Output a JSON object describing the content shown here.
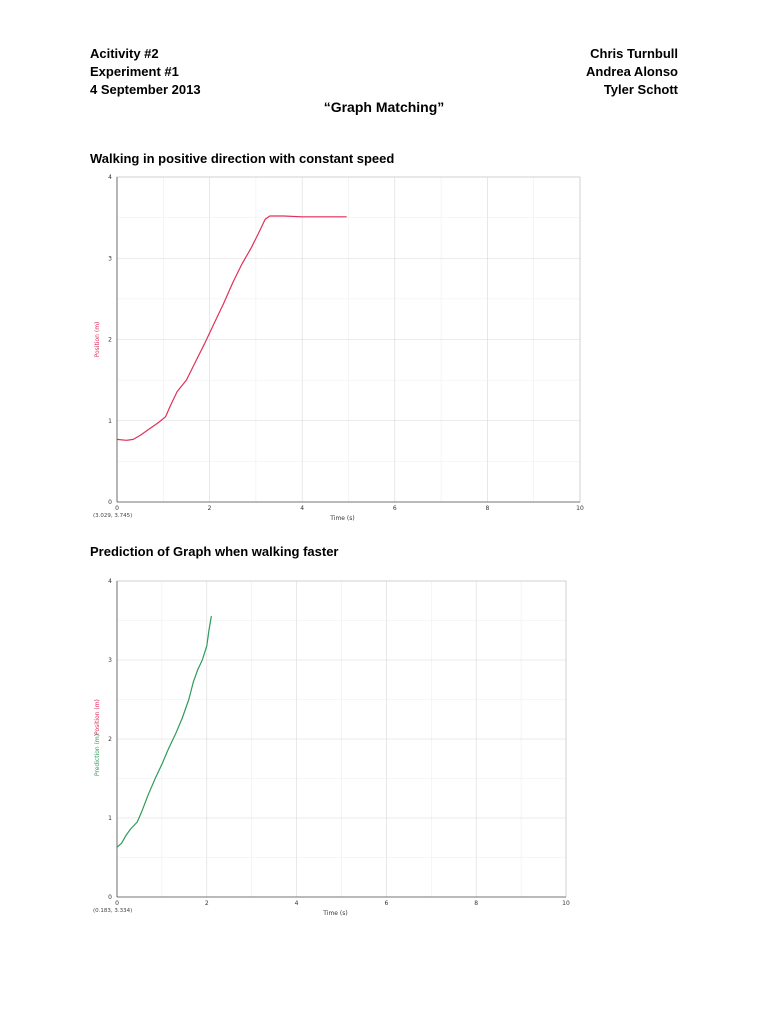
{
  "header": {
    "left": [
      "Acitivity #2",
      "Experiment #1",
      "4 September 2013"
    ],
    "right": [
      "Chris Turnbull",
      "Andrea Alonso",
      "Tyler Schott"
    ],
    "title": "“Graph Matching”"
  },
  "sections": [
    {
      "title": "Walking in positive direction with constant speed"
    },
    {
      "title": "Prediction of Graph when walking faster"
    }
  ],
  "colors": {
    "position": "#e0305a",
    "prediction": "#2e9a5a",
    "grid": "#dddddd"
  },
  "chart_data": [
    {
      "type": "line",
      "title": "",
      "xlabel": "Time (s)",
      "ylabel": "Position (m)",
      "xlim": [
        0,
        10
      ],
      "ylim": [
        0,
        4
      ],
      "xticks": [
        0,
        2,
        4,
        6,
        8,
        10
      ],
      "yticks": [
        0,
        1,
        2,
        3,
        4
      ],
      "grid": true,
      "coord_readout": "(3.029, 3.745)",
      "series": [
        {
          "color": "#e0305a",
          "x": [
            0.0,
            0.2,
            0.35,
            0.5,
            0.7,
            0.9,
            1.05,
            1.15,
            1.3,
            1.5,
            1.7,
            1.9,
            2.1,
            2.3,
            2.5,
            2.7,
            2.9,
            3.05,
            3.2,
            3.3,
            3.6,
            4.0,
            4.5,
            4.95
          ],
          "y": [
            0.77,
            0.76,
            0.77,
            0.82,
            0.9,
            0.98,
            1.05,
            1.18,
            1.36,
            1.5,
            1.73,
            1.96,
            2.2,
            2.44,
            2.7,
            2.93,
            3.13,
            3.3,
            3.48,
            3.52,
            3.52,
            3.51,
            3.51,
            3.51
          ]
        }
      ]
    },
    {
      "type": "line",
      "title": "",
      "xlabel": "Time (s)",
      "ylabel": "Position (m)",
      "ylabel2": "Prediction (m)",
      "xlim": [
        0,
        10
      ],
      "ylim": [
        0,
        4
      ],
      "xticks": [
        0,
        2,
        4,
        6,
        8,
        10
      ],
      "yticks": [
        0,
        1,
        2,
        3,
        4
      ],
      "grid": true,
      "coord_readout": "(0.183, 3.334)",
      "series": [
        {
          "color": "#2e9a5a",
          "x": [
            0.0,
            0.1,
            0.2,
            0.3,
            0.45,
            0.55,
            0.7,
            0.85,
            1.0,
            1.15,
            1.3,
            1.45,
            1.6,
            1.7,
            1.8,
            1.9,
            2.0,
            2.05,
            2.1
          ],
          "y": [
            0.63,
            0.68,
            0.78,
            0.86,
            0.95,
            1.08,
            1.3,
            1.5,
            1.68,
            1.88,
            2.06,
            2.26,
            2.5,
            2.72,
            2.88,
            3.0,
            3.18,
            3.38,
            3.55
          ]
        }
      ]
    }
  ]
}
